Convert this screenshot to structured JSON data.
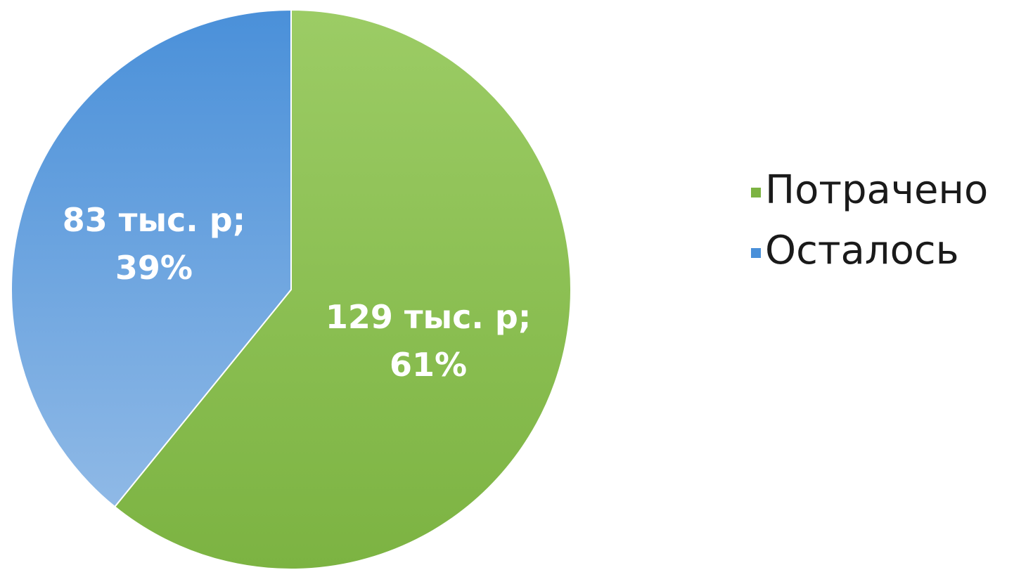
{
  "chart_data": {
    "type": "pie",
    "title": "",
    "legend_position": "right",
    "slices": [
      {
        "name": "Потрачено",
        "value": 129,
        "percent": 61,
        "label_value": "129 тыс. р;",
        "label_percent": "61%",
        "color": "#7cb342",
        "color_light": "#9ccc65"
      },
      {
        "name": "Осталось",
        "value": 83,
        "percent": 39,
        "label_value": "83 тыс. р;",
        "label_percent": "39%",
        "color": "#4a90d9",
        "color_light": "#8fb9e6"
      }
    ]
  }
}
